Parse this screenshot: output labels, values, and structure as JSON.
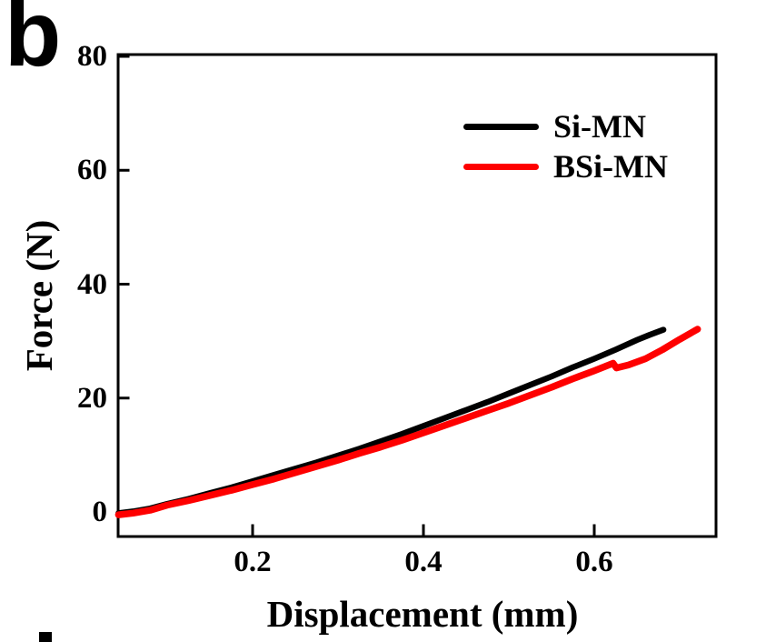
{
  "panel": {
    "label": "b"
  },
  "chart_data": {
    "type": "line",
    "title": "",
    "xlabel": "Displacement (mm)",
    "ylabel": "Force (N)",
    "xlim": [
      0.04,
      0.74
    ],
    "ylim": [
      -4.5,
      80.5
    ],
    "grid": false,
    "legend_position": "upper right",
    "x_ticks": [
      0.2,
      0.4,
      0.6
    ],
    "x_tick_labels": [
      "0.2",
      "0.4",
      "0.6"
    ],
    "y_ticks": [
      0,
      20,
      40,
      60,
      80
    ],
    "y_tick_labels": [
      "0",
      "20",
      "40",
      "60",
      "80"
    ],
    "axis_color": "#000000",
    "series": [
      {
        "name": "Si-MN",
        "color": "#000000",
        "line_width": 6.5,
        "points": [
          [
            0.043,
            -0.2
          ],
          [
            0.06,
            0.1
          ],
          [
            0.08,
            0.6
          ],
          [
            0.1,
            1.4
          ],
          [
            0.125,
            2.3
          ],
          [
            0.15,
            3.3
          ],
          [
            0.175,
            4.3
          ],
          [
            0.2,
            5.4
          ],
          [
            0.225,
            6.5
          ],
          [
            0.25,
            7.6
          ],
          [
            0.275,
            8.7
          ],
          [
            0.3,
            9.9
          ],
          [
            0.325,
            11.1
          ],
          [
            0.35,
            12.4
          ],
          [
            0.375,
            13.7
          ],
          [
            0.4,
            15.1
          ],
          [
            0.425,
            16.5
          ],
          [
            0.45,
            17.9
          ],
          [
            0.475,
            19.3
          ],
          [
            0.5,
            20.8
          ],
          [
            0.525,
            22.3
          ],
          [
            0.55,
            23.8
          ],
          [
            0.575,
            25.4
          ],
          [
            0.6,
            26.9
          ],
          [
            0.625,
            28.5
          ],
          [
            0.65,
            30.2
          ],
          [
            0.665,
            31.1
          ],
          [
            0.681,
            32.0
          ]
        ]
      },
      {
        "name": "BSi-MN",
        "color": "#fe0000",
        "line_width": 7.5,
        "points": [
          [
            0.043,
            -0.5
          ],
          [
            0.06,
            -0.2
          ],
          [
            0.08,
            0.3
          ],
          [
            0.1,
            1.2
          ],
          [
            0.125,
            2.0
          ],
          [
            0.15,
            2.9
          ],
          [
            0.175,
            3.8
          ],
          [
            0.2,
            4.8
          ],
          [
            0.225,
            5.8
          ],
          [
            0.25,
            6.9
          ],
          [
            0.275,
            8.0
          ],
          [
            0.3,
            9.1
          ],
          [
            0.325,
            10.3
          ],
          [
            0.35,
            11.4
          ],
          [
            0.375,
            12.6
          ],
          [
            0.4,
            13.9
          ],
          [
            0.425,
            15.2
          ],
          [
            0.45,
            16.5
          ],
          [
            0.475,
            17.8
          ],
          [
            0.5,
            19.1
          ],
          [
            0.525,
            20.5
          ],
          [
            0.55,
            21.9
          ],
          [
            0.575,
            23.4
          ],
          [
            0.6,
            24.8
          ],
          [
            0.615,
            25.7
          ],
          [
            0.622,
            26.1
          ],
          [
            0.626,
            25.3
          ],
          [
            0.64,
            25.8
          ],
          [
            0.66,
            26.9
          ],
          [
            0.68,
            28.5
          ],
          [
            0.7,
            30.3
          ],
          [
            0.721,
            32.1
          ]
        ]
      }
    ]
  }
}
